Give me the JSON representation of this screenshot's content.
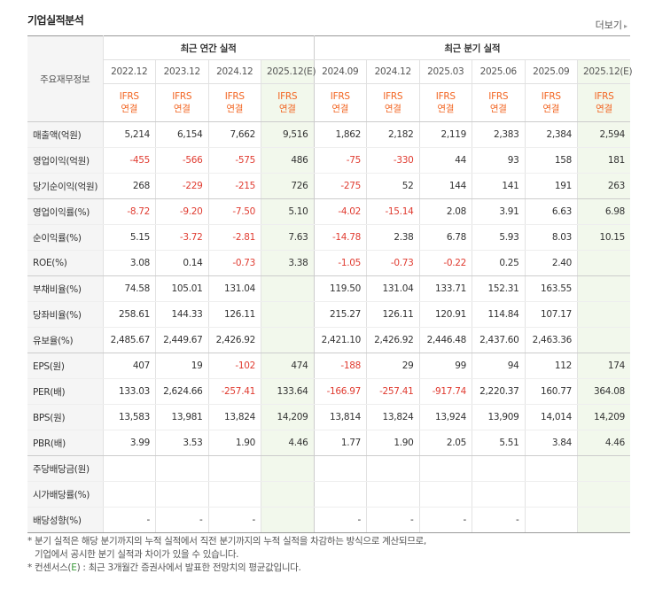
{
  "title": "기업실적분석",
  "more_label": "더보기",
  "header": {
    "row_label": "주요재무정보",
    "annual_group": "최근 연간 실적",
    "quarter_group": "최근 분기 실적",
    "annual_periods": [
      "2022.12",
      "2023.12",
      "2024.12",
      "2025.12(E)"
    ],
    "quarter_periods": [
      "2024.09",
      "2024.12",
      "2025.03",
      "2025.06",
      "2025.09",
      "2025.12(E)"
    ],
    "ifrs_line1": "IFRS",
    "ifrs_line2": "연결"
  },
  "rows": [
    {
      "label": "매출액(억원)",
      "values": [
        "5,214",
        "6,154",
        "7,662",
        "9,516",
        "1,862",
        "2,182",
        "2,119",
        "2,383",
        "2,384",
        "2,594"
      ],
      "neg": []
    },
    {
      "label": "영업이익(억원)",
      "values": [
        "-455",
        "-566",
        "-575",
        "486",
        "-75",
        "-330",
        "44",
        "93",
        "158",
        "181"
      ],
      "neg": [
        0,
        1,
        2,
        4,
        5
      ]
    },
    {
      "label": "당기순이익(억원)",
      "values": [
        "268",
        "-229",
        "-215",
        "726",
        "-275",
        "52",
        "144",
        "141",
        "191",
        "263"
      ],
      "neg": [
        1,
        2,
        4
      ]
    },
    {
      "label": "영업이익률(%)",
      "values": [
        "-8.72",
        "-9.20",
        "-7.50",
        "5.10",
        "-4.02",
        "-15.14",
        "2.08",
        "3.91",
        "6.63",
        "6.98"
      ],
      "neg": [
        0,
        1,
        2,
        4,
        5
      ]
    },
    {
      "label": "순이익률(%)",
      "values": [
        "5.15",
        "-3.72",
        "-2.81",
        "7.63",
        "-14.78",
        "2.38",
        "6.78",
        "5.93",
        "8.03",
        "10.15"
      ],
      "neg": [
        1,
        2,
        4
      ]
    },
    {
      "label": "ROE(%)",
      "values": [
        "3.08",
        "0.14",
        "-0.73",
        "3.38",
        "-1.05",
        "-0.73",
        "-0.22",
        "0.25",
        "2.40",
        ""
      ],
      "neg": [
        2,
        4,
        5,
        6
      ]
    },
    {
      "label": "부채비율(%)",
      "values": [
        "74.58",
        "105.01",
        "131.04",
        "",
        "119.50",
        "131.04",
        "133.71",
        "152.31",
        "163.55",
        ""
      ],
      "neg": []
    },
    {
      "label": "당좌비율(%)",
      "values": [
        "258.61",
        "144.33",
        "126.11",
        "",
        "215.27",
        "126.11",
        "120.91",
        "114.84",
        "107.17",
        ""
      ],
      "neg": []
    },
    {
      "label": "유보율(%)",
      "values": [
        "2,485.67",
        "2,449.67",
        "2,426.92",
        "",
        "2,421.10",
        "2,426.92",
        "2,446.48",
        "2,437.60",
        "2,463.36",
        ""
      ],
      "neg": []
    },
    {
      "label": "EPS(원)",
      "values": [
        "407",
        "19",
        "-102",
        "474",
        "-188",
        "29",
        "99",
        "94",
        "112",
        "174"
      ],
      "neg": [
        2,
        4
      ]
    },
    {
      "label": "PER(배)",
      "values": [
        "133.03",
        "2,624.66",
        "-257.41",
        "133.64",
        "-166.97",
        "-257.41",
        "-917.74",
        "2,220.37",
        "160.77",
        "364.08"
      ],
      "neg": [
        2,
        4,
        5,
        6
      ]
    },
    {
      "label": "BPS(원)",
      "values": [
        "13,583",
        "13,981",
        "13,824",
        "14,209",
        "13,814",
        "13,824",
        "13,924",
        "13,909",
        "14,014",
        "14,209"
      ],
      "neg": []
    },
    {
      "label": "PBR(배)",
      "values": [
        "3.99",
        "3.53",
        "1.90",
        "4.46",
        "1.77",
        "1.90",
        "2.05",
        "5.51",
        "3.84",
        "4.46"
      ],
      "neg": []
    },
    {
      "label": "주당배당금(원)",
      "values": [
        "",
        "",
        "",
        "",
        "",
        "",
        "",
        "",
        "",
        ""
      ],
      "neg": []
    },
    {
      "label": "시가배당률(%)",
      "values": [
        "",
        "",
        "",
        "",
        "",
        "",
        "",
        "",
        "",
        ""
      ],
      "neg": []
    },
    {
      "label": "배당성향(%)",
      "values": [
        "-",
        "-",
        "-",
        "",
        "-",
        "-",
        "-",
        "-",
        "",
        ""
      ],
      "neg": []
    }
  ],
  "notes": {
    "line1": "* 분기 실적은 해당 분기까지의 누적 실적에서 직전 분기까지의 누적 실적을 차감하는 방식으로 계산되므로,",
    "line2": "기업에서 공시한 분기 실적과 차이가 있을 수 있습니다.",
    "line3_prefix": "* 컨센서스(",
    "line3_e": "E",
    "line3_suffix": ") : 최근 3개월간 증권사에서 발표한 전망치의 평균값입니다."
  },
  "colors": {
    "negative": "#e03c31",
    "ifrs": "#f26522",
    "estimate_bg": "#f2f8ec"
  }
}
